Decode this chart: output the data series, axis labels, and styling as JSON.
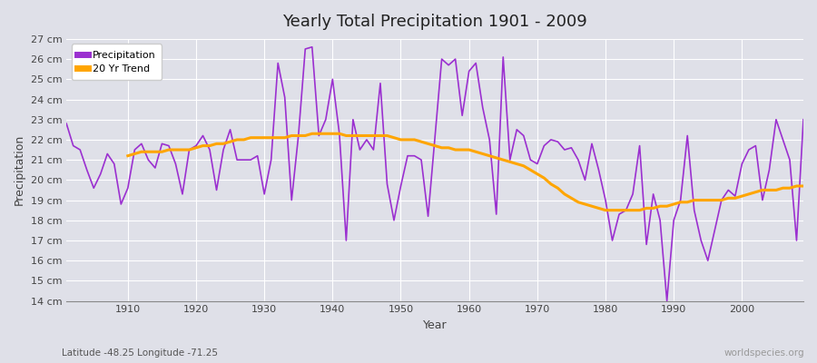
{
  "title": "Yearly Total Precipitation 1901 - 2009",
  "xlabel": "Year",
  "ylabel": "Precipitation",
  "subtitle": "Latitude -48.25 Longitude -71.25",
  "watermark": "worldspecies.org",
  "ylim": [
    14,
    27
  ],
  "yticks": [
    14,
    15,
    16,
    17,
    18,
    19,
    20,
    21,
    22,
    23,
    24,
    25,
    26,
    27
  ],
  "ytick_labels": [
    "14 cm",
    "15 cm",
    "16 cm",
    "17 cm",
    "18 cm",
    "19 cm",
    "20 cm",
    "21 cm",
    "22 cm",
    "23 cm",
    "24 cm",
    "25 cm",
    "26 cm",
    "27 cm"
  ],
  "xlim": [
    1901,
    2009
  ],
  "precipitation_color": "#9B30D0",
  "trend_color": "#FFA500",
  "bg_color": "#E0E0E8",
  "grid_color": "#ffffff",
  "legend_label_precip": "Precipitation",
  "legend_label_trend": "20 Yr Trend",
  "years": [
    1901,
    1902,
    1903,
    1904,
    1905,
    1906,
    1907,
    1908,
    1909,
    1910,
    1911,
    1912,
    1913,
    1914,
    1915,
    1916,
    1917,
    1918,
    1919,
    1920,
    1921,
    1922,
    1923,
    1924,
    1925,
    1926,
    1927,
    1928,
    1929,
    1930,
    1931,
    1932,
    1933,
    1934,
    1935,
    1936,
    1937,
    1938,
    1939,
    1940,
    1941,
    1942,
    1943,
    1944,
    1945,
    1946,
    1947,
    1948,
    1949,
    1950,
    1951,
    1952,
    1953,
    1954,
    1955,
    1956,
    1957,
    1958,
    1959,
    1960,
    1961,
    1962,
    1963,
    1964,
    1965,
    1966,
    1967,
    1968,
    1969,
    1970,
    1971,
    1972,
    1973,
    1974,
    1975,
    1976,
    1977,
    1978,
    1979,
    1980,
    1981,
    1982,
    1983,
    1984,
    1985,
    1986,
    1987,
    1988,
    1989,
    1990,
    1991,
    1992,
    1993,
    1994,
    1995,
    1996,
    1997,
    1998,
    1999,
    2000,
    2001,
    2002,
    2003,
    2004,
    2005,
    2006,
    2007,
    2008,
    2009
  ],
  "precipitation": [
    22.8,
    21.7,
    21.5,
    20.5,
    19.6,
    20.3,
    21.3,
    20.8,
    18.8,
    19.6,
    21.5,
    21.8,
    21.0,
    20.6,
    21.8,
    21.7,
    20.8,
    19.3,
    21.5,
    21.7,
    22.2,
    21.5,
    19.5,
    21.5,
    22.5,
    21.0,
    21.0,
    21.0,
    21.2,
    19.3,
    21.0,
    25.8,
    24.1,
    19.0,
    22.2,
    26.5,
    26.6,
    22.2,
    23.0,
    25.0,
    22.3,
    17.0,
    23.0,
    21.5,
    22.0,
    21.5,
    24.8,
    19.8,
    18.0,
    19.7,
    21.2,
    21.2,
    21.0,
    18.2,
    22.1,
    26.0,
    25.7,
    26.0,
    23.2,
    25.4,
    25.8,
    23.6,
    22.0,
    18.3,
    26.1,
    21.0,
    22.5,
    22.2,
    21.0,
    20.8,
    21.7,
    22.0,
    21.9,
    21.5,
    21.6,
    21.0,
    20.0,
    21.8,
    20.5,
    19.0,
    17.0,
    18.3,
    18.5,
    19.3,
    21.7,
    16.8,
    19.3,
    18.0,
    14.0,
    18.0,
    19.0,
    22.2,
    18.5,
    17.0,
    16.0,
    17.5,
    19.0,
    19.5,
    19.2,
    20.8,
    21.5,
    21.7,
    19.0,
    20.5,
    23.0,
    22.0,
    21.0,
    17.0,
    23.0
  ],
  "trend_years": [
    1910,
    1911,
    1912,
    1913,
    1914,
    1915,
    1916,
    1917,
    1918,
    1919,
    1920,
    1921,
    1922,
    1923,
    1924,
    1925,
    1926,
    1927,
    1928,
    1929,
    1930,
    1931,
    1932,
    1933,
    1934,
    1935,
    1936,
    1937,
    1938,
    1939,
    1940,
    1941,
    1942,
    1943,
    1944,
    1945,
    1946,
    1947,
    1948,
    1949,
    1950,
    1951,
    1952,
    1953,
    1954,
    1955,
    1956,
    1957,
    1958,
    1959,
    1960,
    1961,
    1962,
    1963,
    1964,
    1965,
    1966,
    1967,
    1968,
    1969,
    1970,
    1971,
    1972,
    1973,
    1974,
    1975,
    1976,
    1977,
    1978,
    1979,
    1980,
    1981,
    1982,
    1983,
    1984,
    1985,
    1986,
    1987,
    1988,
    1989,
    1990,
    1991,
    1992,
    1993,
    1994,
    1995,
    1996,
    1997,
    1998,
    1999,
    2000,
    2001,
    2002,
    2003,
    2004,
    2005,
    2006,
    2007,
    2008,
    2009
  ],
  "trend": [
    21.2,
    21.3,
    21.4,
    21.4,
    21.4,
    21.4,
    21.5,
    21.5,
    21.5,
    21.5,
    21.6,
    21.7,
    21.7,
    21.8,
    21.8,
    21.9,
    22.0,
    22.0,
    22.1,
    22.1,
    22.1,
    22.1,
    22.1,
    22.1,
    22.2,
    22.2,
    22.2,
    22.3,
    22.3,
    22.3,
    22.3,
    22.3,
    22.2,
    22.2,
    22.2,
    22.2,
    22.2,
    22.2,
    22.2,
    22.1,
    22.0,
    22.0,
    22.0,
    21.9,
    21.8,
    21.7,
    21.6,
    21.6,
    21.5,
    21.5,
    21.5,
    21.4,
    21.3,
    21.2,
    21.1,
    21.0,
    20.9,
    20.8,
    20.7,
    20.5,
    20.3,
    20.1,
    19.8,
    19.6,
    19.3,
    19.1,
    18.9,
    18.8,
    18.7,
    18.6,
    18.5,
    18.5,
    18.5,
    18.5,
    18.5,
    18.5,
    18.6,
    18.6,
    18.7,
    18.7,
    18.8,
    18.9,
    18.9,
    19.0,
    19.0,
    19.0,
    19.0,
    19.0,
    19.1,
    19.1,
    19.2,
    19.3,
    19.4,
    19.5,
    19.5,
    19.5,
    19.6,
    19.6,
    19.7,
    19.7
  ]
}
